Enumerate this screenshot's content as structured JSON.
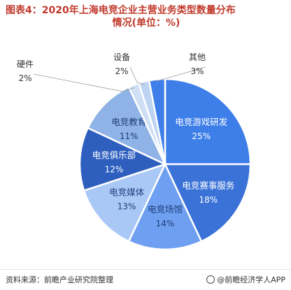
{
  "title_line1": "图表4：2020年上海电竞企业主营业务类型数量分布",
  "title_line2": "情况(单位：%)",
  "source": "资料来源：前瞻产业研究院整理",
  "brand": "@前瞻经济学人APP",
  "colors": {
    "title": "#c0392b",
    "slices": [
      "#3d7ee8",
      "#3a72d8",
      "#6f9ff0",
      "#a9c8f6",
      "#2e5fbf",
      "#8fb3e6",
      "#cfe0f5",
      "#bcd3f2"
    ]
  },
  "chart_data": {
    "type": "pie",
    "title": "图表4：2020年上海电竞企业主营业务类型数量分布情况(单位：%)",
    "unit": "%",
    "slices": [
      {
        "label": "电竞游戏研发",
        "value": 25,
        "display": "25%"
      },
      {
        "label": "电竞赛事服务",
        "value": 18,
        "display": "18%"
      },
      {
        "label": "电竞场馆",
        "value": 14,
        "display": "14%"
      },
      {
        "label": "电竞媒体",
        "value": 13,
        "display": "13%"
      },
      {
        "label": "电竞俱乐部",
        "value": 12,
        "display": "12%"
      },
      {
        "label": "电竞教育",
        "value": 11,
        "display": "11%"
      },
      {
        "label": "硬件",
        "value": 2,
        "display": "2%"
      },
      {
        "label": "设备",
        "value": 2,
        "display": "2%"
      },
      {
        "label": "其他",
        "value": 3,
        "display": "3%"
      }
    ]
  }
}
